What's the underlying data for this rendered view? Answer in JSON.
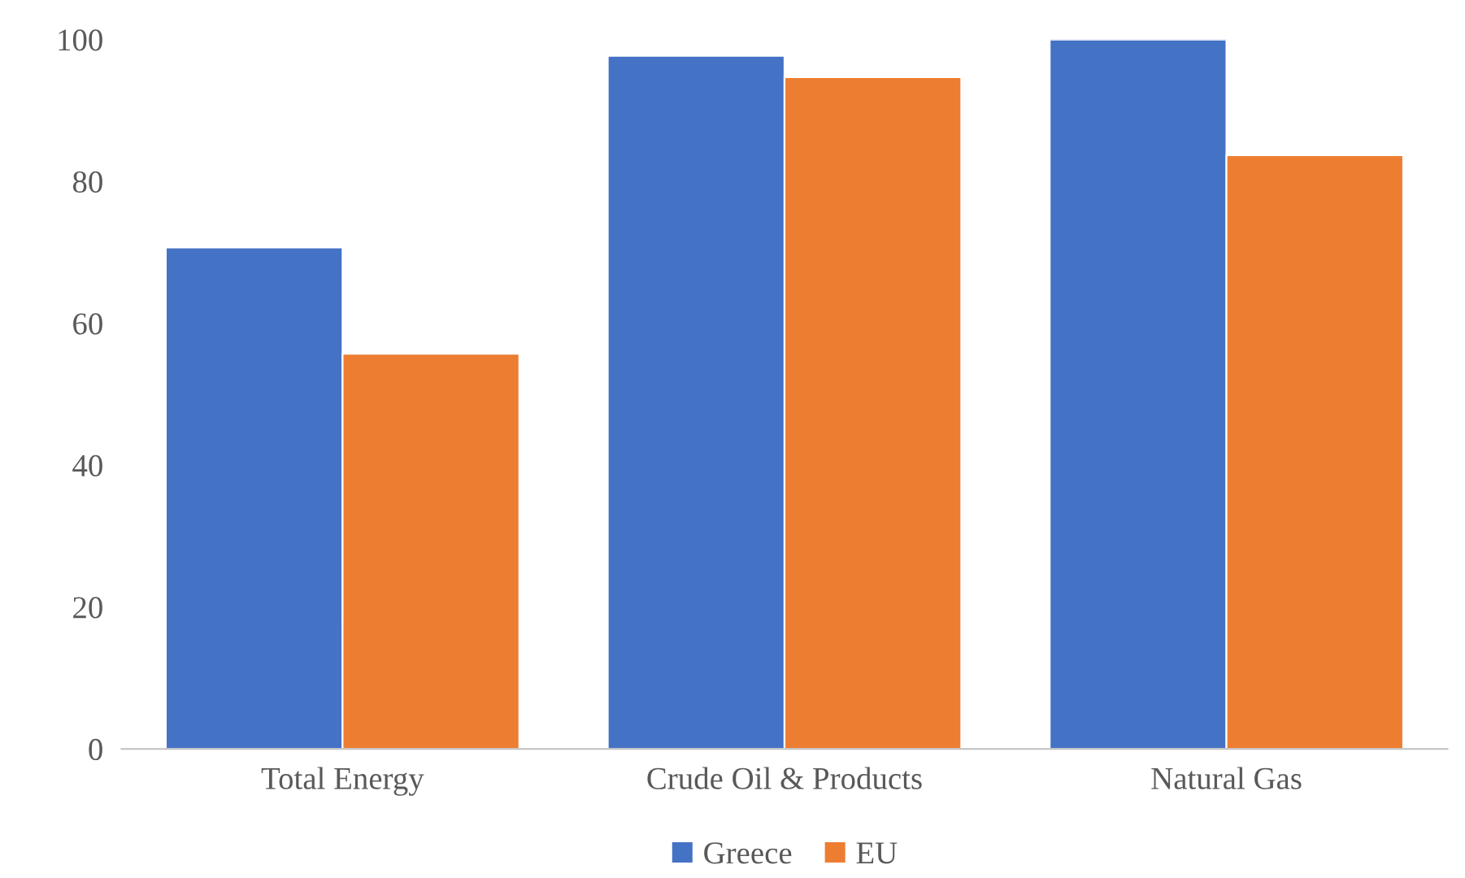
{
  "chart_data": {
    "type": "bar",
    "categories": [
      "Total Energy",
      "Crude Oil & Products",
      "Natural Gas"
    ],
    "series": [
      {
        "name": "Greece",
        "color": "#4472c4",
        "values": [
          70.7,
          97.7,
          100
        ]
      },
      {
        "name": "EU",
        "color": "#ed7d31",
        "values": [
          55.7,
          94.7,
          83.7
        ]
      }
    ],
    "ylim": [
      0,
      100
    ],
    "yticks": [
      0,
      20,
      40,
      60,
      80,
      100
    ],
    "grid": false,
    "legend": "bottom"
  }
}
